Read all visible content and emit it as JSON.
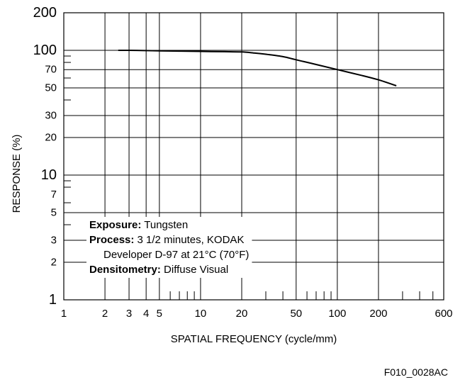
{
  "figure_code": "F010_0028AC",
  "chart_data": {
    "type": "line",
    "title": "",
    "xlabel": "SPATIAL FREQUENCY (cycle/mm)",
    "ylabel": "RESPONSE (%)",
    "x_scale": "log",
    "y_scale": "log",
    "xlim": [
      1,
      600
    ],
    "ylim": [
      1,
      200
    ],
    "grid": true,
    "x_grid_values": [
      1,
      2,
      3,
      4,
      5,
      10,
      20,
      50,
      100,
      200,
      600
    ],
    "x_minor_ticks": [
      6,
      7,
      8,
      9,
      30,
      40,
      60,
      70,
      80,
      90,
      300,
      400,
      500
    ],
    "y_grid_values": [
      1,
      2,
      3,
      5,
      10,
      20,
      30,
      50,
      70,
      100,
      200
    ],
    "y_minor_ticks": [
      4,
      6,
      8,
      9,
      40,
      60,
      80,
      90
    ],
    "x_tick_labels": [
      {
        "value": 1,
        "label": "1"
      },
      {
        "value": 2,
        "label": "2"
      },
      {
        "value": 3,
        "label": "3"
      },
      {
        "value": 4,
        "label": "4"
      },
      {
        "value": 5,
        "label": "5"
      },
      {
        "value": 10,
        "label": "10"
      },
      {
        "value": 20,
        "label": "20"
      },
      {
        "value": 50,
        "label": "50"
      },
      {
        "value": 100,
        "label": "100"
      },
      {
        "value": 200,
        "label": "200"
      },
      {
        "value": 600,
        "label": "600"
      }
    ],
    "y_tick_labels": [
      {
        "value": 1,
        "label": "1",
        "major": true
      },
      {
        "value": 2,
        "label": "2",
        "major": false
      },
      {
        "value": 3,
        "label": "3",
        "major": false
      },
      {
        "value": 5,
        "label": "5",
        "major": false
      },
      {
        "value": 7,
        "label": "7",
        "major": false
      },
      {
        "value": 10,
        "label": "10",
        "major": true
      },
      {
        "value": 20,
        "label": "20",
        "major": false
      },
      {
        "value": 30,
        "label": "30",
        "major": false
      },
      {
        "value": 50,
        "label": "50",
        "major": false
      },
      {
        "value": 70,
        "label": "70",
        "major": false
      },
      {
        "value": 100,
        "label": "100",
        "major": true
      },
      {
        "value": 200,
        "label": "200",
        "major": true
      }
    ],
    "series": [
      {
        "x": [
          2.5,
          3,
          4,
          5,
          7,
          10,
          15,
          20,
          25,
          30,
          40,
          50,
          70,
          100,
          150,
          200,
          270
        ],
        "y": [
          100,
          100,
          99.5,
          99,
          98.5,
          98,
          97.5,
          97,
          95,
          93,
          89,
          84,
          77,
          70,
          63,
          58,
          52
        ]
      }
    ],
    "annotations": [
      {
        "bold": "Exposure:",
        "text": " Tungsten"
      },
      {
        "bold": "Process:",
        "text": " 3 1/2 minutes, KODAK"
      },
      {
        "bold": "",
        "text": "Developer D-97 at 21°C (70°F)"
      },
      {
        "bold": "Densitometry:",
        "text": " Diffuse Visual"
      }
    ]
  }
}
